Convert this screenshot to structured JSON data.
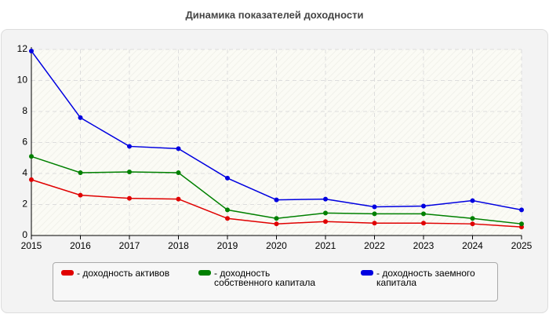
{
  "chart_data": {
    "type": "line",
    "title": "Динамика показателей доходности",
    "x": [
      2015,
      2016,
      2017,
      2018,
      2019,
      2020,
      2021,
      2022,
      2023,
      2024,
      2025
    ],
    "xlim": [
      2015,
      2025
    ],
    "xticks": [
      2015,
      2016,
      2017,
      2018,
      2019,
      2020,
      2021,
      2022,
      2023,
      2024,
      2025
    ],
    "ylim": [
      0,
      12
    ],
    "yticks": [
      0,
      2,
      4,
      6,
      8,
      10,
      12
    ],
    "grid": true,
    "series": [
      {
        "name": "- доходность активов",
        "color": "#e00000",
        "values": [
          3.6,
          2.6,
          2.4,
          2.35,
          1.1,
          0.75,
          0.9,
          0.8,
          0.8,
          0.75,
          0.55
        ]
      },
      {
        "name": "- доходность собственного капитала",
        "color": "#008000",
        "values": [
          5.1,
          4.05,
          4.1,
          4.05,
          1.65,
          1.1,
          1.45,
          1.4,
          1.4,
          1.1,
          0.75
        ]
      },
      {
        "name": "- доходность заемного капитала",
        "color": "#0000e0",
        "values": [
          11.9,
          7.6,
          5.75,
          5.6,
          3.7,
          2.3,
          2.35,
          1.85,
          1.9,
          2.25,
          1.65
        ]
      }
    ]
  }
}
